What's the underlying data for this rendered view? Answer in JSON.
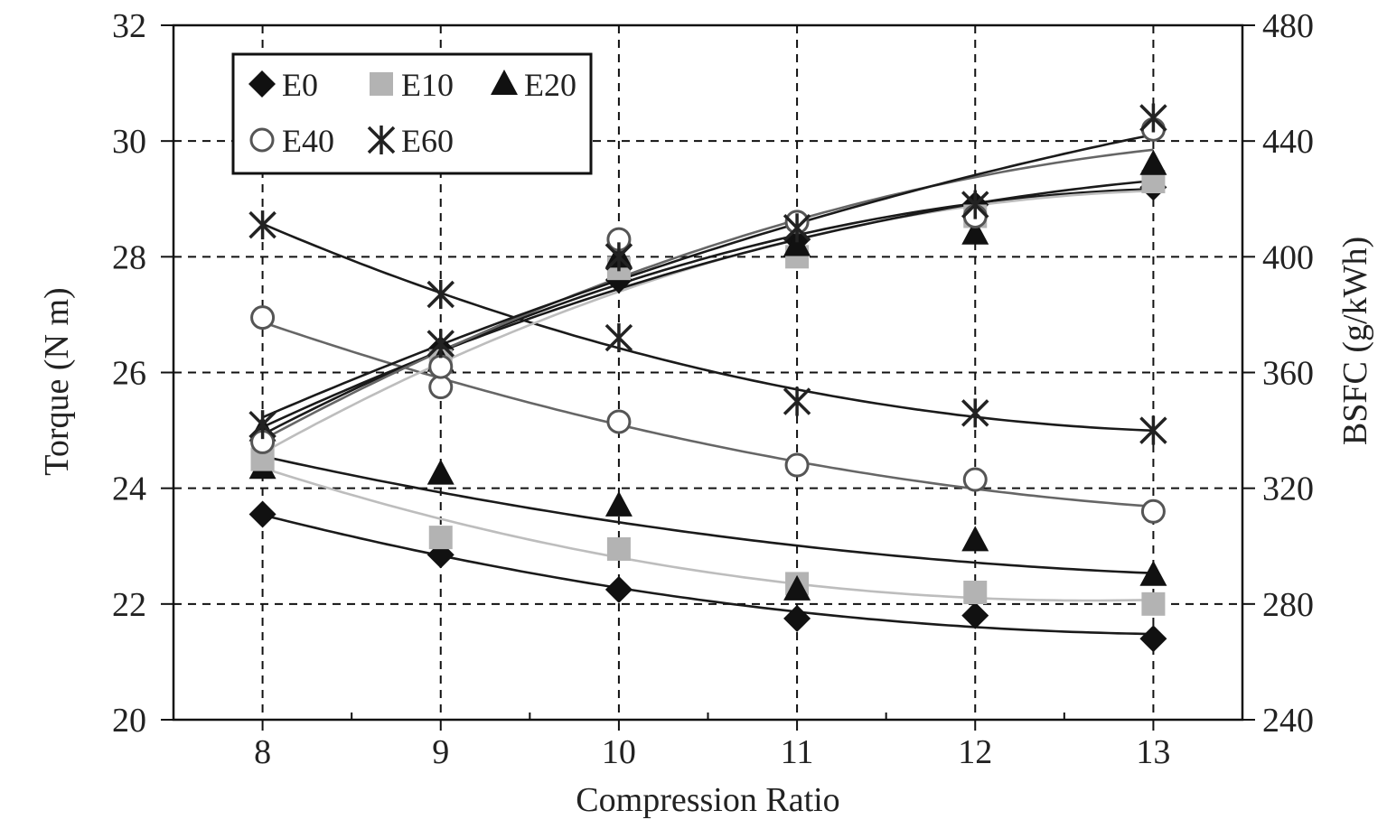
{
  "chart_data": {
    "type": "line",
    "title": "",
    "xlabel": "Compression Ratio",
    "ylabel_left": "Torque (N m)",
    "ylabel_right": "BSFC (g/kWh)",
    "x": [
      8,
      9,
      10,
      11,
      12,
      13
    ],
    "x_ticks": [
      "8",
      "9",
      "10",
      "11",
      "12",
      "13"
    ],
    "xlim": [
      7.5,
      13.5
    ],
    "ylim_left": [
      20,
      32
    ],
    "ylim_right": [
      240,
      480
    ],
    "yticks_left": [
      "20",
      "22",
      "24",
      "26",
      "28",
      "30",
      "32"
    ],
    "yticks_right": [
      "240",
      "280",
      "320",
      "360",
      "400",
      "440",
      "480"
    ],
    "grid": true,
    "legend_position": "top-left",
    "legend": [
      {
        "name": "E0",
        "marker": "diamond",
        "color": "#111111"
      },
      {
        "name": "E10",
        "marker": "square",
        "color": "#b3b3b3"
      },
      {
        "name": "E20",
        "marker": "triangle",
        "color": "#111111"
      },
      {
        "name": "E40",
        "marker": "circle",
        "color": "#555555"
      },
      {
        "name": "E60",
        "marker": "star",
        "color": "#222222"
      }
    ],
    "torque_series": [
      {
        "name": "E0",
        "axis": "left",
        "values": [
          24.9,
          26.4,
          27.6,
          28.3,
          28.9,
          29.2
        ]
      },
      {
        "name": "E10",
        "axis": "left",
        "values": [
          24.5,
          26.2,
          27.8,
          28.0,
          28.7,
          29.3
        ]
      },
      {
        "name": "E20",
        "axis": "left",
        "values": [
          25.0,
          26.2,
          28.0,
          28.2,
          28.4,
          29.6
        ]
      },
      {
        "name": "E40",
        "axis": "left",
        "values": [
          24.8,
          26.1,
          28.3,
          28.6,
          28.7,
          30.2
        ]
      },
      {
        "name": "E60",
        "axis": "left",
        "values": [
          25.1,
          26.5,
          28.0,
          28.5,
          28.9,
          30.4
        ]
      }
    ],
    "bsfc_series": [
      {
        "name": "E0",
        "axis": "right",
        "values": [
          311,
          297,
          285,
          275,
          276,
          268
        ]
      },
      {
        "name": "E10",
        "axis": "right",
        "values": [
          330,
          303,
          299,
          287,
          284,
          280
        ]
      },
      {
        "name": "E20",
        "axis": "right",
        "values": [
          327,
          325,
          314,
          285,
          302,
          290
        ]
      },
      {
        "name": "E40",
        "axis": "right",
        "values": [
          379,
          355,
          343,
          328,
          323,
          312
        ]
      },
      {
        "name": "E60",
        "axis": "right",
        "values": [
          411,
          387,
          372,
          350,
          346,
          340
        ]
      }
    ]
  }
}
